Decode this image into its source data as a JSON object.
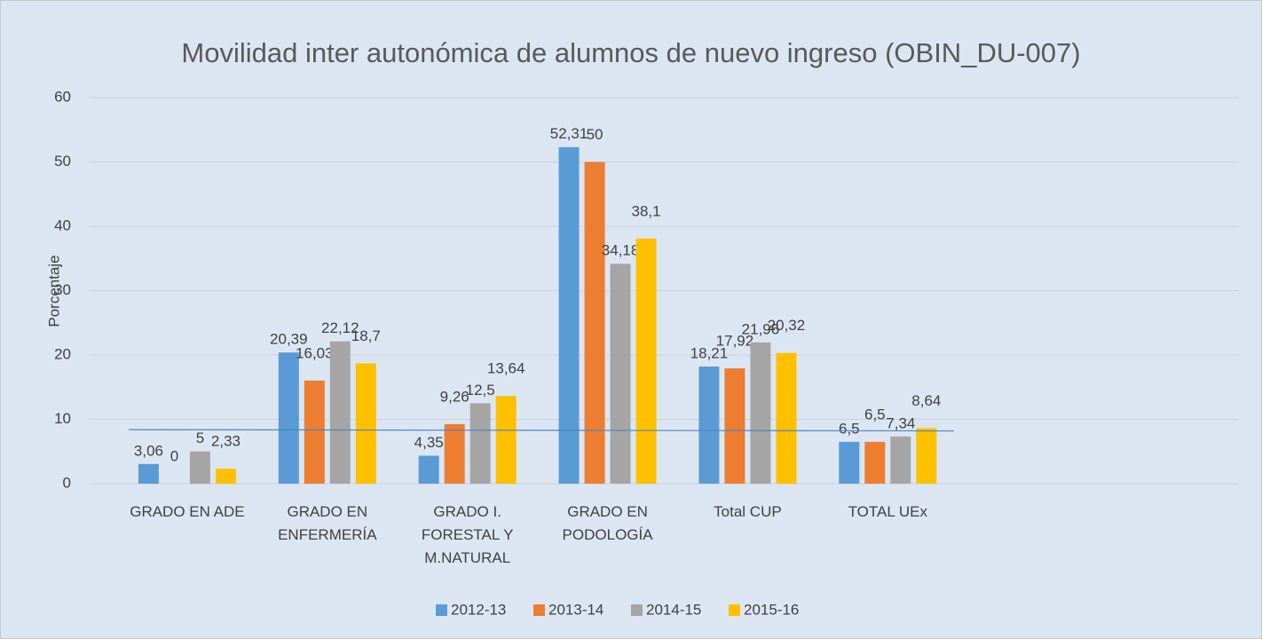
{
  "chart_data": {
    "type": "bar",
    "title": "Movilidad inter autonómica de alumnos de nuevo ingreso (OBIN_DU-007)",
    "y_label": "Porcentaje",
    "categories": [
      "GRADO EN ADE",
      "GRADO EN ENFERMERÍA",
      "GRADO I. FORESTAL Y M.NATURAL",
      "GRADO EN PODOLOGÍA",
      "Total CUP",
      "TOTAL UEx",
      null,
      null
    ],
    "series": [
      {
        "name": "2012-13",
        "color": "#5b9bd5",
        "values": [
          3.06,
          20.39,
          4.35,
          52.31,
          18.21,
          6.5,
          null,
          null
        ],
        "value_labels": [
          "3,06",
          "20,39",
          "4,35",
          "52,31",
          "18,21",
          "6,5",
          null,
          null
        ]
      },
      {
        "name": "2013-14",
        "color": "#ed7d31",
        "values": [
          0,
          16.03,
          9.26,
          50,
          17.92,
          6.5,
          null,
          null
        ],
        "value_labels": [
          "0",
          "16,03",
          "9,26",
          "50",
          "17,92",
          "6,5",
          null,
          null
        ]
      },
      {
        "name": "2014-15",
        "color": "#a5a5a5",
        "values": [
          5,
          22.12,
          12.5,
          34.18,
          21.96,
          7.34,
          null,
          null
        ],
        "value_labels": [
          "5",
          "22,12",
          "12,5",
          "34,18",
          "21,96",
          "7,34",
          null,
          null
        ]
      },
      {
        "name": "2015-16",
        "color": "#ffc000",
        "values": [
          2.33,
          18.7,
          13.64,
          38.1,
          20.32,
          8.64,
          null,
          null
        ],
        "value_labels": [
          "2,33",
          "18,7",
          "13,64",
          "38,1",
          "20,32",
          "8,64",
          null,
          null
        ]
      }
    ],
    "reference_line": {
      "color": "#4a86c5",
      "values": [
        8.4,
        8.2
      ]
    },
    "ylim": [
      0,
      60
    ],
    "yticks": [
      0,
      10,
      20,
      30,
      40,
      50,
      60
    ],
    "grid": true,
    "legend": "bottom"
  }
}
